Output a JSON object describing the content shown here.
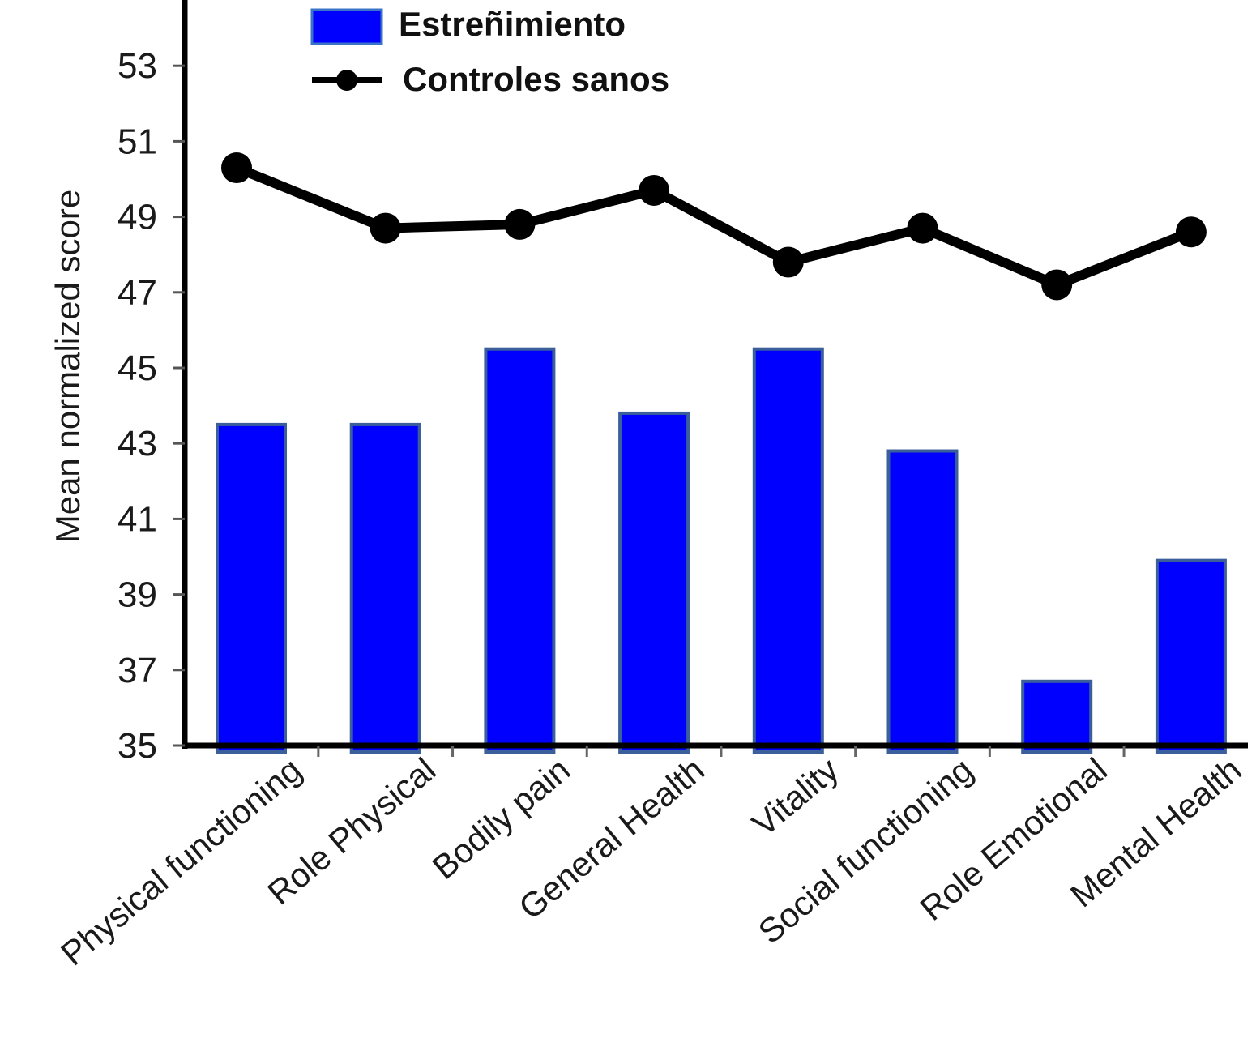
{
  "chart_data": {
    "type": "bar",
    "categories": [
      "Physical functioning",
      "Role Physical",
      "Bodily pain",
      "General Health",
      "Vitality",
      "Social functioning",
      "Role Emotional",
      "Mental Health"
    ],
    "series": [
      {
        "name": "Estreñimiento",
        "type": "bar",
        "color": "#0000ff",
        "values": [
          43.5,
          43.5,
          45.5,
          43.8,
          45.5,
          42.8,
          36.7,
          39.9
        ]
      },
      {
        "name": "Controles sanos",
        "type": "line",
        "color": "#000000",
        "values": [
          50.3,
          48.7,
          48.8,
          49.7,
          47.8,
          48.7,
          47.2,
          48.6
        ]
      }
    ],
    "ylabel": "Mean normalized score",
    "xlabel": "",
    "title": "",
    "ylim": [
      35,
      54
    ],
    "yticks": [
      35,
      37,
      39,
      41,
      43,
      45,
      47,
      49,
      51,
      53
    ],
    "legend": "top-left",
    "grid": false
  }
}
